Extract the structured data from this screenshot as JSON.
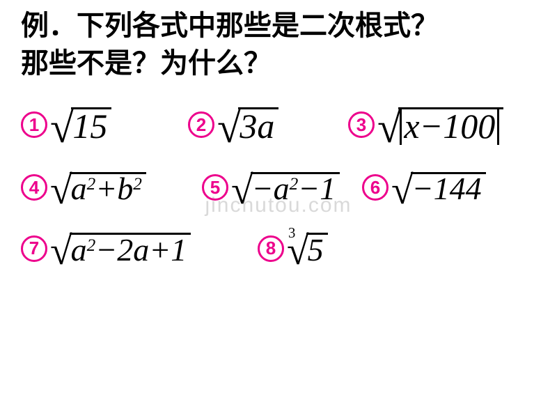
{
  "title_line1": "例．下列各式中那些是二次根式？",
  "title_line2": "那些不是？为什么？",
  "title_fontsize": 40,
  "watermark": "jinchutou.com",
  "watermark_fontsize": 30,
  "watermark_color": "#d9d9d9",
  "badge": {
    "size": 38,
    "border_color": "#ED008C",
    "text_color": "#ED008C",
    "font_size": 26
  },
  "items": [
    {
      "num": "1",
      "expr_html": "15",
      "radix_scale": 1.0
    },
    {
      "num": "2",
      "expr_html": "3<span style=\"font-style:italic\">a</span>",
      "radix_scale": 1.0
    },
    {
      "num": "3",
      "expr_html": "<span class=\"abs\"><span style=\"font-style:italic\">x</span>−100</span>",
      "radix_scale": 1.0
    },
    {
      "num": "4",
      "expr_html": "<span style=\"font-style:italic\">a</span><span class=\"sup\">2</span> + <span style=\"font-style:italic\">b</span><span class=\"sup\">2</span>",
      "radix_scale": 1.0
    },
    {
      "num": "5",
      "expr_html": "−<span style=\"font-style:italic\">a</span><span class=\"sup\">2</span>−1",
      "radix_scale": 1.0
    },
    {
      "num": "6",
      "expr_html": "−144",
      "radix_scale": 1.0
    },
    {
      "num": "7",
      "expr_html": "<span style=\"font-style:italic\">a</span><span class=\"sup\">2</span>−2<span style=\"font-style:italic\">a</span>+1",
      "radix_scale": 1.0
    },
    {
      "num": "8",
      "expr_html": "5",
      "radix_scale": 1.0,
      "index": "3"
    }
  ],
  "layout": {
    "rows": [
      {
        "items": [
          0,
          1,
          2
        ],
        "widths": [
          240,
          230,
          250
        ],
        "fontsize": 50
      },
      {
        "items": [
          3,
          4,
          5
        ],
        "widths": [
          260,
          230,
          230
        ],
        "fontsize": 46
      },
      {
        "items": [
          6,
          7
        ],
        "widths": [
          340,
          200
        ],
        "fontsize": 46
      }
    ]
  },
  "colors": {
    "text": "#000000",
    "background": "#ffffff"
  }
}
